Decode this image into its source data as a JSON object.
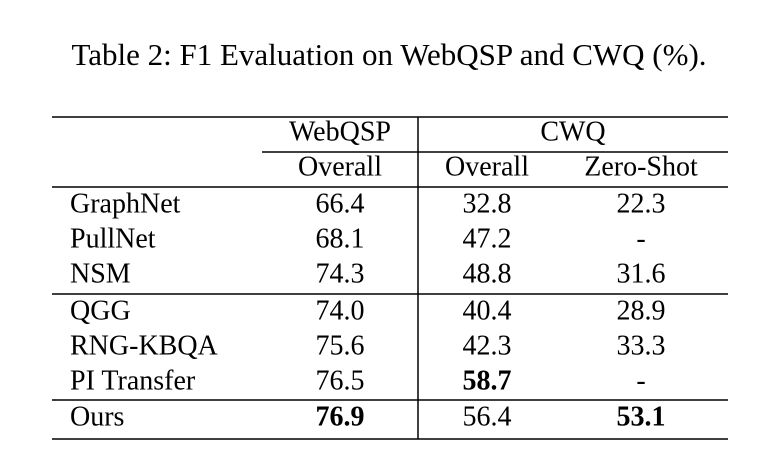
{
  "table": {
    "title": "Table 2:  F1 Evaluation on WebQSP and CWQ (%).",
    "groups": [
      "WebQSP",
      "CWQ"
    ],
    "subheaders": [
      "Overall",
      "Overall",
      "Zero-Shot"
    ],
    "rows": [
      [
        "GraphNet",
        "66.4",
        "32.8",
        "22.3"
      ],
      [
        "PullNet",
        "68.1",
        "47.2",
        "-"
      ],
      [
        "NSM",
        "74.3",
        "48.8",
        "31.6"
      ],
      [
        "QGG",
        "74.0",
        "40.4",
        "28.9"
      ],
      [
        "RNG-KBQA",
        "75.6",
        "42.3",
        "33.3"
      ],
      [
        "PI Transfer",
        "76.5",
        "58.7",
        "-"
      ],
      [
        "Ours",
        "76.9",
        "56.4",
        "53.1"
      ]
    ]
  }
}
